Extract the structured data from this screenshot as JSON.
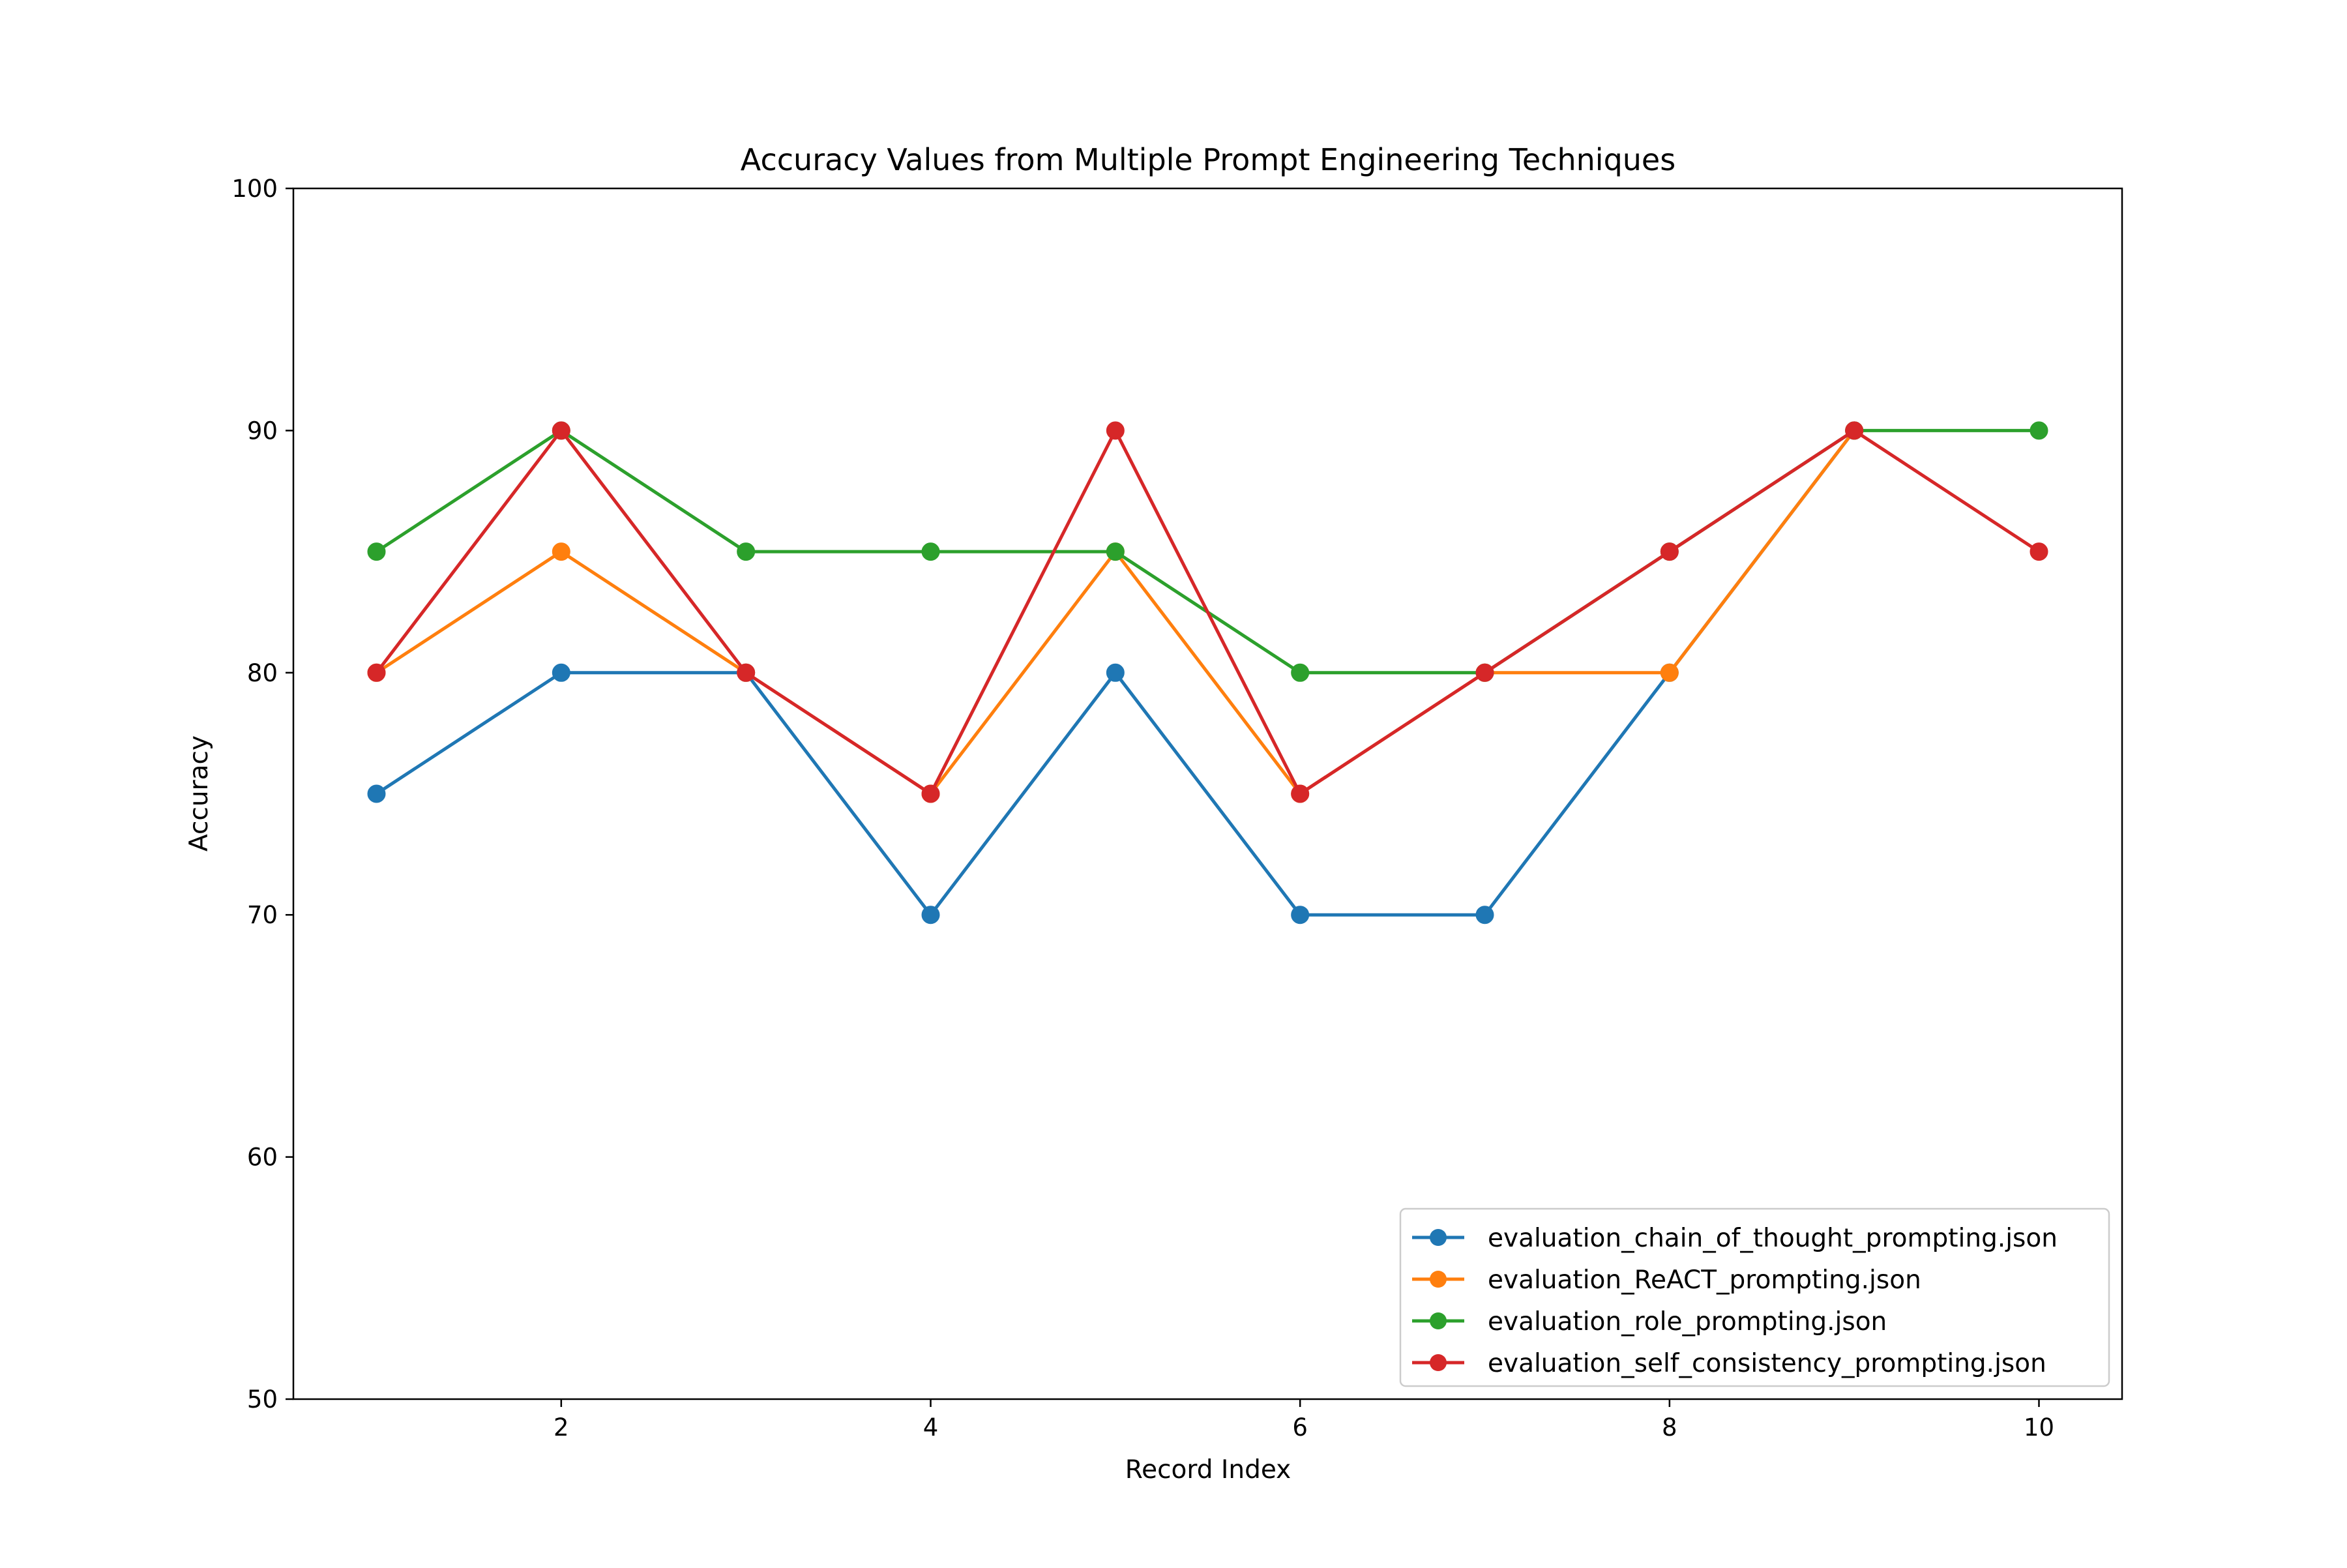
{
  "chart_data": {
    "type": "line",
    "title": "Accuracy Values from Multiple Prompt Engineering Techniques",
    "xlabel": "Record Index",
    "ylabel": "Accuracy",
    "xlim": [
      0.55,
      10.45
    ],
    "ylim": [
      50,
      100
    ],
    "xticks": [
      2,
      4,
      6,
      8,
      10
    ],
    "yticks": [
      50,
      60,
      70,
      80,
      90,
      100
    ],
    "grid": false,
    "legend_position": "bottom-right",
    "x": [
      1,
      2,
      3,
      4,
      5,
      6,
      7,
      8,
      9,
      10
    ],
    "series": [
      {
        "name": "evaluation_chain_of_thought_prompting.json",
        "color": "#1f77b4",
        "marker": "circle",
        "x": [
          1,
          2,
          3,
          4,
          5,
          6,
          7,
          8,
          9
        ],
        "values": [
          75,
          80,
          80,
          70,
          80,
          70,
          70,
          80,
          90
        ]
      },
      {
        "name": "evaluation_ReACT_prompting.json",
        "color": "#ff7f0e",
        "marker": "circle",
        "x": [
          1,
          2,
          3,
          4,
          5,
          6,
          7,
          8,
          9
        ],
        "values": [
          80,
          85,
          80,
          75,
          85,
          75,
          80,
          80,
          90
        ]
      },
      {
        "name": "evaluation_role_prompting.json",
        "color": "#2ca02c",
        "marker": "circle",
        "x": [
          1,
          2,
          3,
          4,
          5,
          6,
          7,
          8,
          9,
          10
        ],
        "values": [
          85,
          90,
          85,
          85,
          85,
          80,
          80,
          85,
          90,
          90
        ]
      },
      {
        "name": "evaluation_self_consistency_prompting.json",
        "color": "#d62728",
        "marker": "circle",
        "x": [
          1,
          2,
          3,
          4,
          5,
          6,
          7,
          8,
          9,
          10
        ],
        "values": [
          80,
          90,
          80,
          75,
          90,
          75,
          80,
          85,
          90,
          85
        ]
      }
    ]
  }
}
